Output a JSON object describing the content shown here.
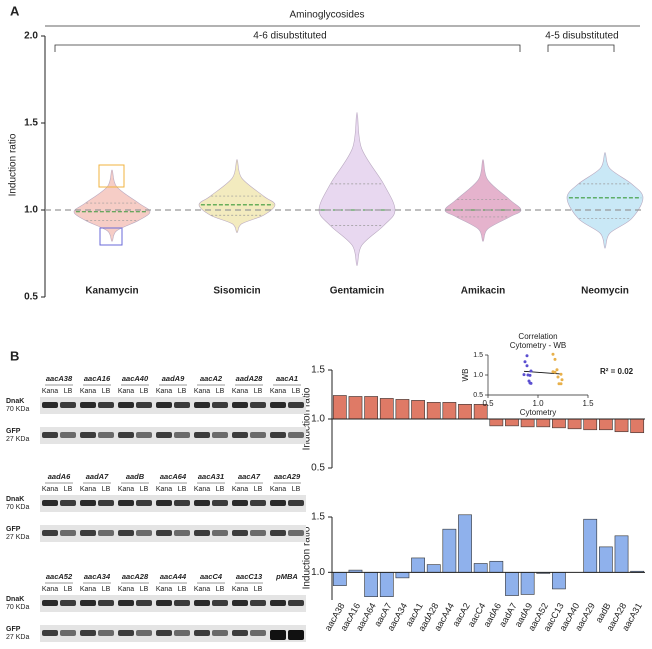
{
  "panels": [
    "A",
    "B"
  ],
  "blots": {
    "rows": [
      {
        "genes": [
          {
            "name": "aacA38",
            "color": "#e4a12f"
          },
          {
            "name": "aacA16",
            "color": "#e4a12f"
          },
          {
            "name": "aacA40",
            "color": "#5a3fc0"
          },
          {
            "name": "aadA9",
            "color": "#5a3fc0"
          },
          {
            "name": "aacA2",
            "color": "#e4a12f"
          },
          {
            "name": "aadA28",
            "color": "#e4a12f"
          },
          {
            "name": "aacA1",
            "color": "#e4a12f"
          }
        ]
      },
      {
        "genes": [
          {
            "name": "aadA6",
            "color": "#5a3fc0"
          },
          {
            "name": "aadA7",
            "color": "#5a3fc0"
          },
          {
            "name": "aadB",
            "color": "#5a3fc0"
          },
          {
            "name": "aacA64",
            "color": "#e4a12f"
          },
          {
            "name": "aacA31",
            "color": "#5a3fc0"
          },
          {
            "name": "aacA7",
            "color": "#e4a12f"
          },
          {
            "name": "aacA29",
            "color": "#5a3fc0"
          }
        ]
      },
      {
        "genes": [
          {
            "name": "aacA52",
            "color": "#5a3fc0"
          },
          {
            "name": "aacA34",
            "color": "#e4a12f"
          },
          {
            "name": "aacA28",
            "color": "#5a3fc0"
          },
          {
            "name": "aacA44",
            "color": "#e4a12f"
          },
          {
            "name": "aacC4",
            "color": "#e4a12f"
          },
          {
            "name": "aacC13",
            "color": "#5a3fc0"
          },
          {
            "name": "pMBA",
            "color": "#222222"
          }
        ]
      }
    ],
    "lane_labels": [
      "Kana",
      "LB"
    ],
    "markers": [
      {
        "protein": "DnaK",
        "size": "70 KDa"
      },
      {
        "protein": "GFP",
        "size": "27 KDa"
      }
    ]
  },
  "chart_data": [
    {
      "type": "violin",
      "title": "Aminoglycosides",
      "groups": [
        "4-6 disubstituted",
        "4-5 disubstituted"
      ],
      "ylabel": "Induction ratio",
      "categories": [
        "Kanamycin",
        "Sisomicin",
        "Gentamicin",
        "Amikacin",
        "Neomycin"
      ],
      "violins": [
        {
          "min": 0.82,
          "q1": 0.94,
          "median": 0.99,
          "q3": 1.04,
          "max": 1.23,
          "color": "#f6cdc6"
        },
        {
          "min": 0.87,
          "q1": 0.97,
          "median": 1.03,
          "q3": 1.08,
          "max": 1.29,
          "color": "#f3ebbf"
        },
        {
          "min": 0.68,
          "q1": 0.91,
          "median": 1.0,
          "q3": 1.15,
          "max": 1.56,
          "color": "#e8d8f0"
        },
        {
          "min": 0.82,
          "q1": 0.96,
          "median": 1.0,
          "q3": 1.06,
          "max": 1.29,
          "color": "#e5b3cd"
        },
        {
          "min": 0.78,
          "q1": 0.95,
          "median": 1.07,
          "q3": 1.15,
          "max": 1.33,
          "color": "#c9e8f6"
        }
      ],
      "ylim": [
        0.5,
        2.0
      ],
      "yticks": [
        {
          "value": 0.5,
          "label": "0.5"
        },
        {
          "value": 1,
          "label": "1.0"
        },
        {
          "value": 1.5,
          "label": "1.5"
        },
        {
          "value": 2,
          "label": "2.0"
        }
      ],
      "reference_line": 1
    },
    {
      "type": "bar",
      "ylabel": "Induction ratio",
      "color": "#df7a66",
      "base": 1,
      "values": [
        1.24,
        1.23,
        1.23,
        1.21,
        1.2,
        1.19,
        1.17,
        1.17,
        1.15,
        1.15,
        0.93,
        0.93,
        0.92,
        0.92,
        0.91,
        0.9,
        0.89,
        0.89,
        0.87,
        0.86
      ],
      "ylim": [
        0.5,
        1.5
      ],
      "yticks": [
        {
          "value": 0.5,
          "label": "0.5"
        },
        {
          "value": 1,
          "label": "1.0"
        },
        {
          "value": 1.5,
          "label": "1.5"
        }
      ]
    },
    {
      "type": "bar",
      "ylabel": "Induction ratio",
      "color": "#8fb1ec",
      "base": 1,
      "categories": [
        "aacA38",
        "aacA16",
        "aacA64",
        "aacA7",
        "aacA34",
        "aacA1",
        "aadA28",
        "aacA44",
        "aacA2",
        "aacC4",
        "aadA6",
        "aadA7",
        "aadA9",
        "aacA52",
        "aacC13",
        "aacA40",
        "aacA29",
        "aadB",
        "aacA28",
        "aacA31"
      ],
      "values": [
        0.88,
        1.02,
        0.78,
        0.78,
        0.95,
        1.13,
        1.07,
        1.39,
        1.52,
        1.08,
        1.1,
        0.79,
        0.8,
        0.99,
        0.85,
        1.0,
        1.48,
        1.23,
        1.33,
        1.01
      ],
      "ylim": [
        0.75,
        1.5
      ],
      "yticks": [
        {
          "value": 1,
          "label": "1.0"
        },
        {
          "value": 1.5,
          "label": "1.5"
        }
      ]
    },
    {
      "type": "scatter",
      "title_lines": [
        "Correlation",
        "Cytometry - WB"
      ],
      "xlabel": "Cytometry",
      "ylabel": "WB",
      "annotation": "R² = 0.02",
      "point_colors": [
        "#5b4fd0",
        "#e8b04a"
      ],
      "xlim": [
        0.5,
        1.5
      ],
      "ylim": [
        0.5,
        1.5
      ],
      "xticks": [
        {
          "value": 0.5,
          "label": "0.5"
        },
        {
          "value": 1,
          "label": "1.0"
        },
        {
          "value": 1.5,
          "label": "1.5"
        }
      ],
      "yticks": [
        {
          "value": 0.5,
          "label": "0.5"
        },
        {
          "value": 1,
          "label": "1.0"
        },
        {
          "value": 1.5,
          "label": "1.5"
        }
      ]
    }
  ]
}
